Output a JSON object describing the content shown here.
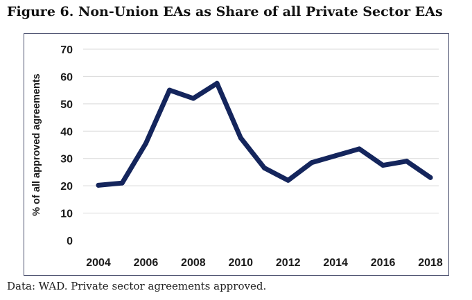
{
  "figure": {
    "title": "Figure 6. Non-Union EAs as Share of all Private Sector EAs",
    "source": "Data: WAD. Private sector agreements approved."
  },
  "chart_data": {
    "type": "line",
    "title": "Figure 6. Non-Union EAs as Share of all Private Sector EAs",
    "xlabel": "",
    "ylabel": "% of all approved agreements",
    "x": [
      2004,
      2005,
      2006,
      2007,
      2008,
      2009,
      2010,
      2011,
      2012,
      2013,
      2014,
      2015,
      2016,
      2017,
      2018
    ],
    "series": [
      {
        "name": "Non-Union EAs share",
        "values": [
          20.2,
          21,
          35.5,
          55,
          52,
          57.5,
          37.5,
          26.5,
          22,
          28.5,
          31,
          33.5,
          27.5,
          29,
          23
        ]
      }
    ],
    "xticks": [
      "2004",
      "2006",
      "2008",
      "2010",
      "2012",
      "2014",
      "2016",
      "2018"
    ],
    "yticks": [
      "0",
      "10",
      "20",
      "30",
      "40",
      "50",
      "60",
      "70"
    ],
    "ylim": [
      0,
      70
    ],
    "grid": true,
    "line_color": "#14255c",
    "grid_color": "#d9d9d9"
  }
}
